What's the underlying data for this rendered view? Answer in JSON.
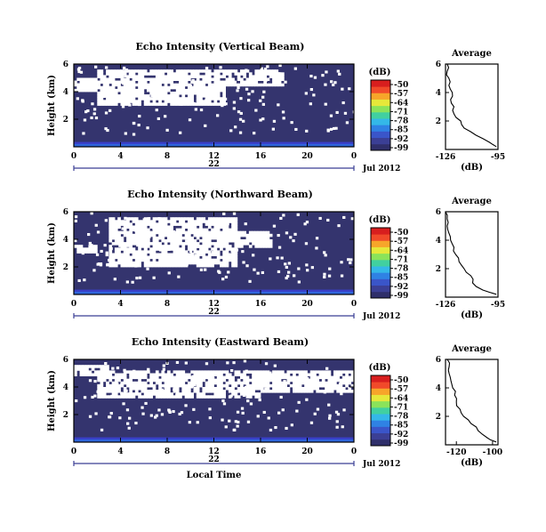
{
  "figure": {
    "xlabel": "Local Time",
    "date_label": "Jul 2012",
    "colorbar_unit": "(dB)",
    "colorbar_ticks": [
      "-50",
      "-57",
      "-64",
      "-71",
      "-78",
      "-85",
      "-92",
      "-99"
    ],
    "colorbar_colors": [
      "#2f2f6a",
      "#3b3f95",
      "#3a55c9",
      "#2f82e4",
      "#34b8e8",
      "#41d0a0",
      "#8be35a",
      "#e6e83a",
      "#f7a52a",
      "#f14a2a",
      "#d81e1e"
    ]
  },
  "chart_data": [
    {
      "type": "heatmap",
      "title": "Echo Intensity (Vertical Beam)",
      "ylabel": "Height (km)",
      "x_ticks": [
        "0",
        "4",
        "8",
        "12",
        "16",
        "20",
        "0"
      ],
      "x_date_tick": "22",
      "y_ticks": [
        "6",
        "4",
        "2"
      ],
      "xlim": [
        0,
        24
      ],
      "ylim": [
        0,
        6
      ],
      "value_range": [
        -99,
        -50
      ],
      "dominant_value": -96,
      "near_ground_value": -88,
      "no_data_regions": [
        [
          2,
          13,
          3.2,
          5.6
        ],
        [
          13,
          18,
          4.5,
          5.6
        ],
        [
          0,
          2,
          4.2,
          5.0
        ]
      ],
      "average_profile": {
        "title": "Average",
        "xlabel": "(dB)",
        "x_ticks": [
          "-126",
          "-95"
        ],
        "xlim": [
          -126,
          -95
        ],
        "y_ticks": [
          "6",
          "4",
          "2"
        ],
        "ylim": [
          0,
          6
        ],
        "height": [
          0.2,
          0.5,
          1.0,
          1.5,
          2.0,
          2.5,
          3.0,
          3.5,
          4.0,
          4.5,
          5.0,
          5.5,
          6.0
        ],
        "value": [
          -96,
          -100,
          -108,
          -115,
          -117,
          -121,
          -121,
          -123,
          -122,
          -124,
          -124,
          -125,
          -125
        ]
      }
    },
    {
      "type": "heatmap",
      "title": "Echo Intensity (Northward Beam)",
      "ylabel": "Height (km)",
      "x_ticks": [
        "0",
        "4",
        "8",
        "12",
        "16",
        "20",
        "0"
      ],
      "x_date_tick": "22",
      "y_ticks": [
        "6",
        "4",
        "2"
      ],
      "xlim": [
        0,
        24
      ],
      "ylim": [
        0,
        6
      ],
      "value_range": [
        -99,
        -50
      ],
      "dominant_value": -96,
      "near_ground_value": -88,
      "no_data_regions": [
        [
          3,
          14,
          2.0,
          5.6
        ],
        [
          14,
          17,
          3.5,
          4.6
        ],
        [
          0,
          2,
          3.0,
          3.6
        ]
      ],
      "average_profile": {
        "title": "Average",
        "xlabel": "(dB)",
        "x_ticks": [
          "-126",
          "-95"
        ],
        "xlim": [
          -126,
          -95
        ],
        "y_ticks": [
          "6",
          "4",
          "2"
        ],
        "ylim": [
          0,
          6
        ],
        "height": [
          0.2,
          0.5,
          1.0,
          1.5,
          2.0,
          2.5,
          3.0,
          3.5,
          4.0,
          4.5,
          5.0,
          5.5,
          6.0
        ],
        "value": [
          -96,
          -104,
          -110,
          -111,
          -115,
          -118,
          -120,
          -121,
          -123,
          -124,
          -125,
          -125,
          -126
        ]
      }
    },
    {
      "type": "heatmap",
      "title": "Echo Intensity (Eastward Beam)",
      "ylabel": "Height (km)",
      "x_ticks": [
        "0",
        "4",
        "8",
        "12",
        "16",
        "20",
        "0"
      ],
      "x_date_tick": "22",
      "y_ticks": [
        "6",
        "4",
        "2"
      ],
      "xlim": [
        0,
        24
      ],
      "ylim": [
        0,
        6
      ],
      "value_range": [
        -99,
        -50
      ],
      "dominant_value": -96,
      "near_ground_value": -88,
      "no_data_regions": [
        [
          2,
          16,
          3.2,
          5.2
        ],
        [
          16,
          24,
          3.6,
          5.2
        ],
        [
          0,
          3,
          4.8,
          5.6
        ]
      ],
      "average_profile": {
        "title": "Average",
        "xlabel": "(dB)",
        "x_ticks": [
          "-120",
          "-100"
        ],
        "xlim": [
          -126,
          -97
        ],
        "y_ticks": [
          "6",
          "4",
          "2"
        ],
        "ylim": [
          0,
          6
        ],
        "height": [
          0.2,
          0.5,
          1.0,
          1.5,
          2.0,
          2.5,
          3.0,
          3.5,
          4.0,
          4.5,
          5.0,
          5.5,
          6.0
        ],
        "value": [
          -98,
          -103,
          -108,
          -112,
          -116,
          -118,
          -120,
          -121,
          -122,
          -123,
          -124,
          -124,
          -125
        ]
      }
    }
  ]
}
